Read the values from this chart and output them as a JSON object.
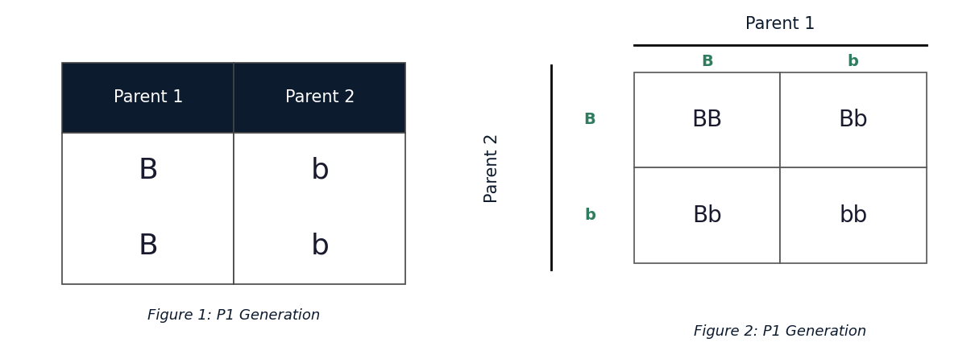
{
  "fig1": {
    "header_color": "#0d1b2e",
    "header_text_color": "#ffffff",
    "cell_text_color": "#1a1a2e",
    "headers": [
      "Parent 1",
      "Parent 2"
    ],
    "cells": [
      [
        "B",
        "b"
      ],
      [
        "B",
        "b"
      ]
    ],
    "caption": "Figure 1: P1 Generation",
    "header_fontsize": 15,
    "cell_fontsize": 26,
    "caption_fontsize": 13
  },
  "fig2": {
    "dark_color": "#0d1b2e",
    "green_color": "#2e7d5e",
    "cell_text_color": "#1a1a2e",
    "parent1_label": "Parent 1",
    "parent2_label": "Parent 2",
    "col_headers": [
      "B",
      "b"
    ],
    "row_headers": [
      "B",
      "b"
    ],
    "cells": [
      [
        "BB",
        "Bb"
      ],
      [
        "Bb",
        "bb"
      ]
    ],
    "caption": "Figure 2: P1 Generation",
    "label_fontsize": 15,
    "header_fontsize": 14,
    "cell_fontsize": 20,
    "caption_fontsize": 13
  },
  "background_color": "#ffffff"
}
